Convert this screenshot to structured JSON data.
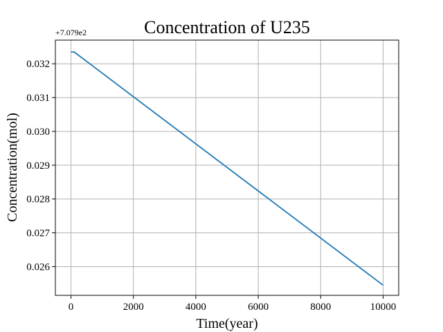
{
  "chart_data": {
    "type": "line",
    "title": "Concentration of U235",
    "xlabel": "Time(year)",
    "ylabel": "Concentration(mol)",
    "y_offset_label": "+7.079e2",
    "y_offset": 707.9,
    "xlim": [
      -500,
      10500
    ],
    "ylim": [
      0.02515,
      0.0327
    ],
    "x_ticks": [
      0,
      2000,
      4000,
      6000,
      8000,
      10000
    ],
    "x_tick_labels": [
      "0",
      "2000",
      "4000",
      "6000",
      "8000",
      "10000"
    ],
    "y_ticks": [
      0.026,
      0.027,
      0.028,
      0.029,
      0.03,
      0.031,
      0.032
    ],
    "y_tick_labels": [
      "0.026",
      "0.027",
      "0.028",
      "0.029",
      "0.030",
      "0.031",
      "0.032"
    ],
    "grid": true,
    "series": [
      {
        "color": "#1f77b4",
        "x": [
          0,
          100,
          10000
        ],
        "y": [
          0.03235,
          0.03235,
          0.02545
        ]
      }
    ]
  }
}
